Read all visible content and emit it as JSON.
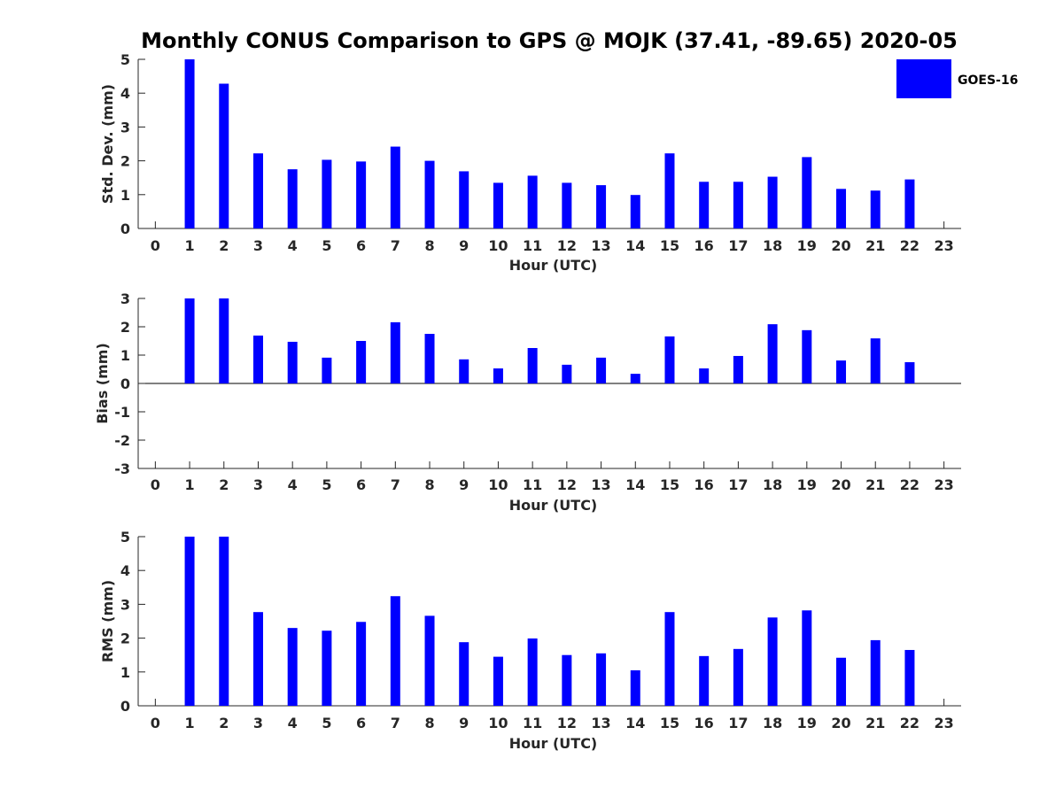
{
  "chart_data": [
    {
      "type": "bar",
      "title": "Monthly CONUS Comparison to GPS @ MOJK (37.41, -89.65) 2020-05",
      "xlabel": "Hour (UTC)",
      "ylabel": "Std. Dev. (mm)",
      "ylim": [
        0,
        5
      ],
      "yticks": [
        0,
        1,
        2,
        3,
        4,
        5
      ],
      "xlim": [
        -0.5,
        23.5
      ],
      "categories": [
        "0",
        "1",
        "2",
        "3",
        "4",
        "5",
        "6",
        "7",
        "8",
        "9",
        "10",
        "11",
        "12",
        "13",
        "14",
        "15",
        "16",
        "17",
        "18",
        "19",
        "20",
        "21",
        "22",
        "23"
      ],
      "series": [
        {
          "name": "GOES-16",
          "color": "#0000ff",
          "values": [
            null,
            5.0,
            4.28,
            2.22,
            1.75,
            2.03,
            1.98,
            2.42,
            2.0,
            1.69,
            1.35,
            1.56,
            1.35,
            1.28,
            0.99,
            2.22,
            1.38,
            1.38,
            1.53,
            2.11,
            1.17,
            1.12,
            1.45,
            null
          ]
        }
      ],
      "legend": {
        "placement": "top-right"
      },
      "grid": false
    },
    {
      "type": "bar",
      "xlabel": "Hour (UTC)",
      "ylabel": "Bias (mm)",
      "ylim": [
        -3,
        3
      ],
      "yticks": [
        -3,
        -2,
        -1,
        0,
        1,
        2,
        3
      ],
      "xlim": [
        -0.5,
        23.5
      ],
      "categories": [
        "0",
        "1",
        "2",
        "3",
        "4",
        "5",
        "6",
        "7",
        "8",
        "9",
        "10",
        "11",
        "12",
        "13",
        "14",
        "15",
        "16",
        "17",
        "18",
        "19",
        "20",
        "21",
        "22",
        "23"
      ],
      "series": [
        {
          "color": "#0000ff",
          "values": [
            null,
            3.0,
            3.0,
            1.69,
            1.47,
            0.91,
            1.5,
            2.16,
            1.75,
            0.85,
            0.53,
            1.25,
            0.66,
            0.91,
            0.34,
            1.66,
            0.53,
            0.97,
            2.09,
            1.88,
            0.81,
            1.59,
            0.75,
            null
          ]
        }
      ],
      "grid": false
    },
    {
      "type": "bar",
      "xlabel": "Hour (UTC)",
      "ylabel": "RMS (mm)",
      "ylim": [
        0,
        5
      ],
      "yticks": [
        0,
        1,
        2,
        3,
        4,
        5
      ],
      "xlim": [
        -0.5,
        23.5
      ],
      "categories": [
        "0",
        "1",
        "2",
        "3",
        "4",
        "5",
        "6",
        "7",
        "8",
        "9",
        "10",
        "11",
        "12",
        "13",
        "14",
        "15",
        "16",
        "17",
        "18",
        "19",
        "20",
        "21",
        "22",
        "23"
      ],
      "series": [
        {
          "color": "#0000ff",
          "values": [
            null,
            5.0,
            5.0,
            2.77,
            2.3,
            2.22,
            2.48,
            3.24,
            2.66,
            1.88,
            1.45,
            1.99,
            1.5,
            1.55,
            1.05,
            2.77,
            1.47,
            1.68,
            2.61,
            2.82,
            1.42,
            1.94,
            1.65,
            null
          ]
        }
      ],
      "grid": false
    }
  ]
}
